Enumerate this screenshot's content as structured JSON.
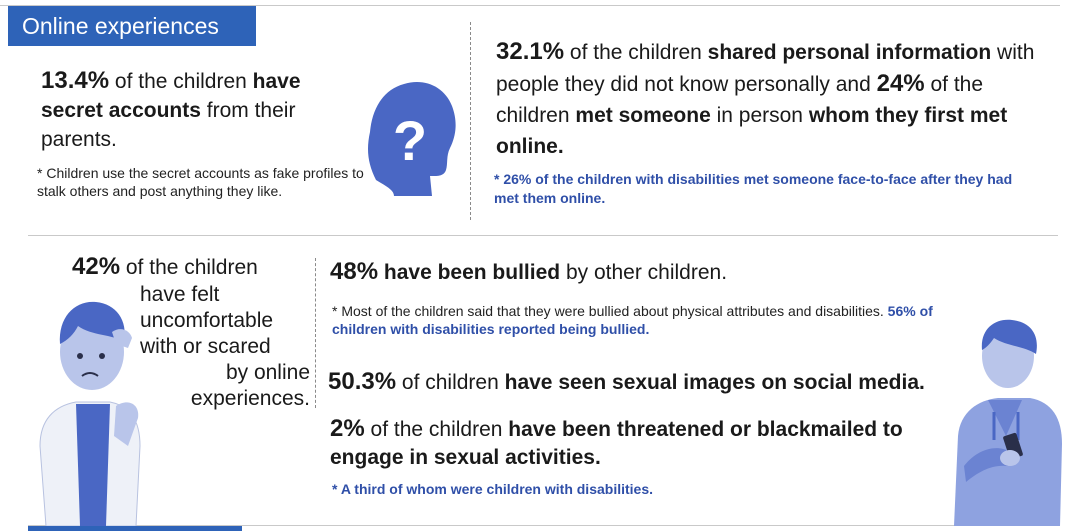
{
  "header": {
    "title": "Online experiences"
  },
  "stats": {
    "secret_accounts": {
      "value": "13.4%",
      "t1": " of the children ",
      "b1": "have secret accounts",
      "t2": " from their parents."
    },
    "secret_note": "* Children use the secret accounts as fake profiles to stalk others and post anything they like.",
    "shared_info": {
      "value1": "32.1%",
      "t1": " of the children ",
      "b1": "shared personal information",
      "t2": " with people they did not know personally and ",
      "value2": "24%",
      "t3": " of the children ",
      "b2": "met someone",
      "t4": " in person ",
      "b3": "whom they first met online."
    },
    "shared_note": "* 26% of the children with disabilities met someone face-to-face after they had met them online.",
    "uncomfortable": {
      "value": "42%",
      "t1": " of the children",
      "lines": [
        "have felt",
        "uncomfortable",
        "with or scared",
        "by online",
        "experiences."
      ]
    },
    "bullied": {
      "value": "48%",
      "b1": " have been bullied",
      "t1": " by other children."
    },
    "bullied_note": {
      "text": "* Most of the children said that they were bullied about physical attributes and disabilities. ",
      "blue": "56% of children with disabilities reported being bullied."
    },
    "sexual_images": {
      "value": "50.3%",
      "t1": " of children ",
      "b1": "have seen sexual images on social media."
    },
    "threatened": {
      "value": "2%",
      "t1": " of the children ",
      "b1": "have been threatened or blackmailed to engage in sexual activities."
    },
    "threatened_note": "* A third of whom were children with disabilities."
  },
  "colors": {
    "accent": "#2e63b8",
    "note_blue": "#2f4fa8",
    "illustration": "#4a67c4",
    "illustration_light": "#8ea2e0"
  },
  "icons": [
    "question-head-icon",
    "worried-child-icon",
    "teen-phone-icon"
  ]
}
